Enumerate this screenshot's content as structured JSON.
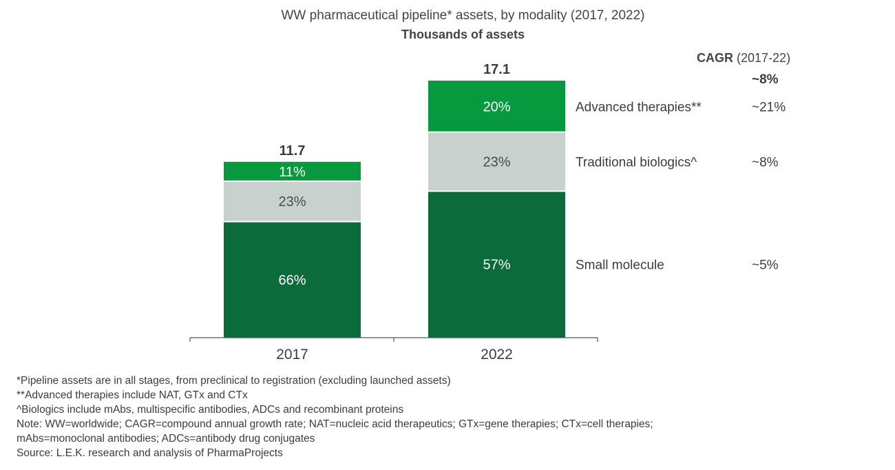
{
  "chart_data": {
    "type": "bar",
    "stacked": true,
    "title": "WW pharmaceutical pipeline* assets, by modality (2017, 2022)",
    "subtitle": "Thousands of assets",
    "categories": [
      "2017",
      "2022"
    ],
    "totals": [
      11.7,
      17.1
    ],
    "total_labels": [
      "11.7",
      "17.1"
    ],
    "ylim": [
      0,
      17.1
    ],
    "grid": false,
    "series": [
      {
        "name": "Small molecule",
        "share_pct": [
          66,
          57
        ],
        "labels": [
          "66%",
          "57%"
        ],
        "color": "#0b6b3b",
        "label_color": "#ffffff",
        "cagr": "~5%"
      },
      {
        "name": "Traditional biologics^",
        "share_pct": [
          23,
          23
        ],
        "labels": [
          "23%",
          "23%"
        ],
        "color": "#c9d1cf",
        "label_color": "#4a4a4a",
        "cagr": "~8%"
      },
      {
        "name": "Advanced therapies**",
        "share_pct": [
          11,
          20
        ],
        "labels": [
          "11%",
          "20%"
        ],
        "color": "#07993d",
        "label_color": "#ffffff",
        "cagr": "~21%"
      }
    ],
    "cagr_header": {
      "bold": "CAGR",
      "period": "(2017-22)"
    },
    "cagr_total": "~8%"
  },
  "footnotes": [
    "*Pipeline assets are in all stages, from preclinical to registration (excluding launched assets)",
    "**Advanced therapies include NAT, GTx and CTx",
    "^Biologics include mAbs, multispecific antibodies, ADCs and recombinant proteins",
    "Note: WW=worldwide; CAGR=compound annual growth rate; NAT=nucleic acid therapeutics; GTx=gene therapies; CTx=cell therapies;",
    "mAbs=monoclonal antibodies; ADCs=antibody drug conjugates",
    "Source: L.E.K. research and analysis of PharmaProjects"
  ]
}
